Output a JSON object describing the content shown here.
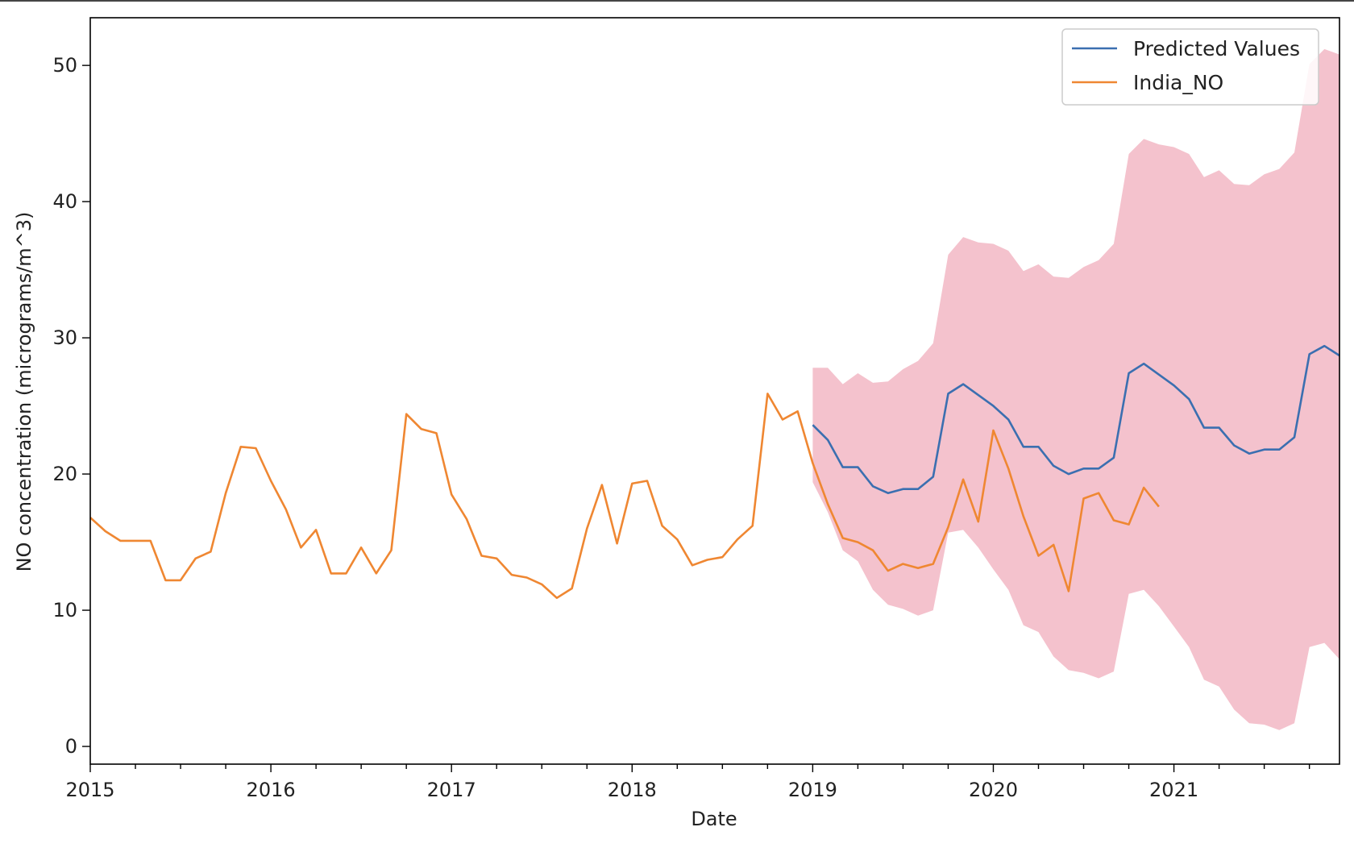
{
  "chart_data": {
    "type": "line",
    "xlabel": "Date",
    "ylabel": "NO concentration (micrograms/m^3)",
    "xlim": [
      "2015-01",
      "2021-12"
    ],
    "ylim": [
      -1.3,
      53.5
    ],
    "x_ticks": [
      "2015",
      "2016",
      "2017",
      "2018",
      "2019",
      "2020",
      "2021"
    ],
    "y_ticks": [
      0,
      10,
      20,
      30,
      40,
      50
    ],
    "grid": false,
    "legend_position": "top-right",
    "series": [
      {
        "name": "Predicted Values",
        "color": "#3b6fb0",
        "x": [
          "2019-01",
          "2019-02",
          "2019-03",
          "2019-04",
          "2019-05",
          "2019-06",
          "2019-07",
          "2019-08",
          "2019-09",
          "2019-10",
          "2019-11",
          "2019-12",
          "2020-01",
          "2020-02",
          "2020-03",
          "2020-04",
          "2020-05",
          "2020-06",
          "2020-07",
          "2020-08",
          "2020-09",
          "2020-10",
          "2020-11",
          "2020-12",
          "2021-01",
          "2021-02",
          "2021-03",
          "2021-04",
          "2021-05",
          "2021-06",
          "2021-07",
          "2021-08",
          "2021-09",
          "2021-10",
          "2021-11",
          "2021-12"
        ],
        "values": [
          23.6,
          22.5,
          20.5,
          20.5,
          19.1,
          18.6,
          18.9,
          18.9,
          19.8,
          25.9,
          26.6,
          25.8,
          25.0,
          24.0,
          22.0,
          22.0,
          20.6,
          20.0,
          20.4,
          20.4,
          21.2,
          27.4,
          28.1,
          27.3,
          26.5,
          25.5,
          23.4,
          23.4,
          22.1,
          21.5,
          21.8,
          21.8,
          22.7,
          28.8,
          29.4,
          28.7
        ]
      },
      {
        "name": "India_NO",
        "color": "#ef8732",
        "x": [
          "2015-01",
          "2015-02",
          "2015-03",
          "2015-04",
          "2015-05",
          "2015-06",
          "2015-07",
          "2015-08",
          "2015-09",
          "2015-10",
          "2015-11",
          "2015-12",
          "2016-01",
          "2016-02",
          "2016-03",
          "2016-04",
          "2016-05",
          "2016-06",
          "2016-07",
          "2016-08",
          "2016-09",
          "2016-10",
          "2016-11",
          "2016-12",
          "2017-01",
          "2017-02",
          "2017-03",
          "2017-04",
          "2017-05",
          "2017-06",
          "2017-07",
          "2017-08",
          "2017-09",
          "2017-10",
          "2017-11",
          "2017-12",
          "2018-01",
          "2018-02",
          "2018-03",
          "2018-04",
          "2018-05",
          "2018-06",
          "2018-07",
          "2018-08",
          "2018-09",
          "2018-10",
          "2018-11",
          "2018-12",
          "2019-01",
          "2019-02",
          "2019-03",
          "2019-04",
          "2019-05",
          "2019-06",
          "2019-07",
          "2019-08",
          "2019-09",
          "2019-10",
          "2019-11",
          "2019-12",
          "2020-01",
          "2020-02",
          "2020-03",
          "2020-04",
          "2020-05",
          "2020-06",
          "2020-07",
          "2020-08",
          "2020-09",
          "2020-10",
          "2020-11",
          "2020-12"
        ],
        "values": [
          16.8,
          15.8,
          15.1,
          15.1,
          15.1,
          12.2,
          12.2,
          13.8,
          14.3,
          18.6,
          22.0,
          21.9,
          19.5,
          17.4,
          14.6,
          15.9,
          12.7,
          12.7,
          14.6,
          12.7,
          14.4,
          24.4,
          23.3,
          23.0,
          18.5,
          16.7,
          14.0,
          13.8,
          12.6,
          12.4,
          11.9,
          10.9,
          11.6,
          16.0,
          19.2,
          14.9,
          19.3,
          19.5,
          16.2,
          15.2,
          13.3,
          13.7,
          13.9,
          15.2,
          16.2,
          25.9,
          24.0,
          24.6,
          20.8,
          17.8,
          15.3,
          15.0,
          14.4,
          12.9,
          13.4,
          13.1,
          13.4,
          16.1,
          19.6,
          16.5,
          23.2,
          20.4,
          16.9,
          14.0,
          14.8,
          11.4,
          18.2,
          18.6,
          16.6,
          16.3,
          19.0,
          17.6
        ]
      }
    ],
    "confidence_band": {
      "color": "#f4c2cd",
      "x": [
        "2019-01",
        "2019-02",
        "2019-03",
        "2019-04",
        "2019-05",
        "2019-06",
        "2019-07",
        "2019-08",
        "2019-09",
        "2019-10",
        "2019-11",
        "2019-12",
        "2020-01",
        "2020-02",
        "2020-03",
        "2020-04",
        "2020-05",
        "2020-06",
        "2020-07",
        "2020-08",
        "2020-09",
        "2020-10",
        "2020-11",
        "2020-12",
        "2021-01",
        "2021-02",
        "2021-03",
        "2021-04",
        "2021-05",
        "2021-06",
        "2021-07",
        "2021-08",
        "2021-09",
        "2021-10",
        "2021-11",
        "2021-12"
      ],
      "lower": [
        19.4,
        17.2,
        14.4,
        13.6,
        11.5,
        10.4,
        10.1,
        9.6,
        10.0,
        15.7,
        15.9,
        14.6,
        13.0,
        11.5,
        8.9,
        8.4,
        6.6,
        5.6,
        5.4,
        5.0,
        5.5,
        11.2,
        11.5,
        10.3,
        8.8,
        7.3,
        4.9,
        4.4,
        2.7,
        1.7,
        1.6,
        1.2,
        1.7,
        7.3,
        7.6,
        6.4
      ],
      "upper": [
        27.8,
        27.8,
        26.6,
        27.4,
        26.7,
        26.8,
        27.7,
        28.3,
        29.6,
        36.1,
        37.4,
        37.0,
        36.9,
        36.4,
        34.9,
        35.4,
        34.5,
        34.4,
        35.2,
        35.7,
        36.9,
        43.5,
        44.6,
        44.2,
        44.0,
        43.5,
        41.8,
        42.3,
        41.3,
        41.2,
        42.0,
        42.4,
        43.6,
        50.1,
        51.2,
        50.8
      ]
    }
  }
}
